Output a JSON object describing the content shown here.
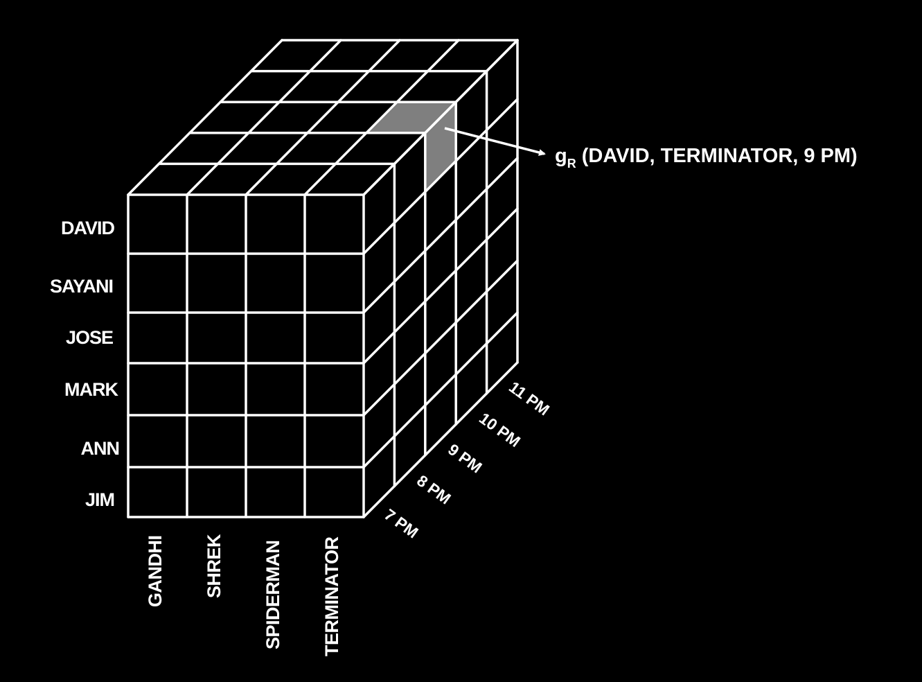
{
  "rows": [
    "DAVID",
    "SAYANI",
    "JOSE",
    "MARK",
    "ANN",
    "JIM"
  ],
  "columns": [
    "GANDHI",
    "SHREK",
    "SPIDERMAN",
    "TERMINATOR"
  ],
  "times": [
    "7 PM",
    "8 PM",
    "9 PM",
    "10 PM",
    "11 PM"
  ],
  "highlight": {
    "row": "DAVID",
    "column": "TERMINATOR",
    "time": "9 PM"
  },
  "annotation": {
    "symbol": "g",
    "subscript": "R",
    "text": " (DAVID, TERMINATOR, 9 PM)"
  },
  "colors": {
    "background": "#000000",
    "lines": "#ffffff",
    "highlight": "#7f7f7f"
  }
}
